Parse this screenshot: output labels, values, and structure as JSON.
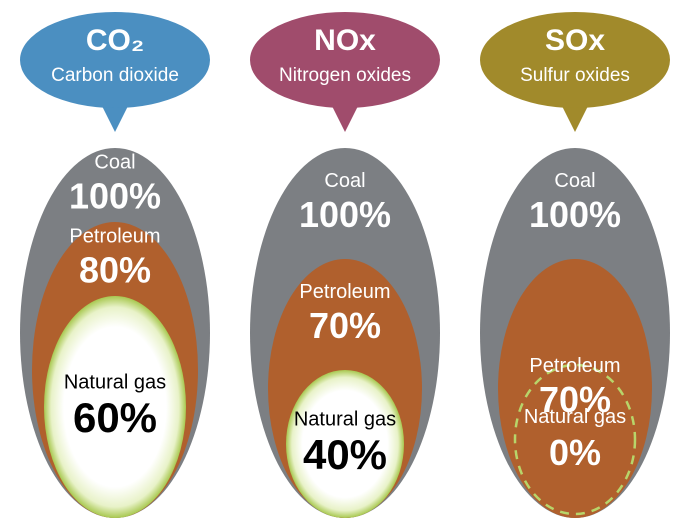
{
  "chart_data": [
    {
      "type": "nested",
      "title": "CO₂",
      "subtitle": "Carbon dioxide",
      "header_color": "#4b8fc1",
      "categories": [
        "Coal",
        "Petroleum",
        "Natural gas"
      ],
      "values": [
        100,
        80,
        60
      ],
      "value_labels": [
        "100%",
        "80%",
        "60%"
      ],
      "colors": [
        "#7c7f83",
        "#b0602d",
        "#ffffff"
      ]
    },
    {
      "type": "nested",
      "title": "NOx",
      "subtitle": "Nitrogen oxides",
      "header_color": "#a04c6c",
      "categories": [
        "Coal",
        "Petroleum",
        "Natural gas"
      ],
      "values": [
        100,
        70,
        40
      ],
      "value_labels": [
        "100%",
        "70%",
        "40%"
      ],
      "colors": [
        "#7c7f83",
        "#b0602d",
        "#ffffff"
      ]
    },
    {
      "type": "nested",
      "title": "SOx",
      "subtitle": "Sulfur oxides",
      "header_color": "#a18a2b",
      "categories": [
        "Coal",
        "Petroleum",
        "Natural gas"
      ],
      "values": [
        100,
        70,
        0
      ],
      "value_labels": [
        "100%",
        "70%",
        "0%"
      ],
      "colors": [
        "#7c7f83",
        "#b0602d",
        "#ffffff"
      ]
    }
  ]
}
